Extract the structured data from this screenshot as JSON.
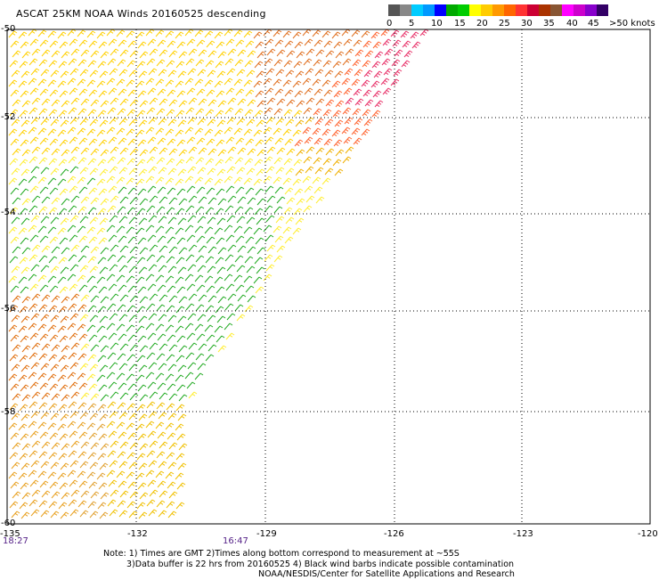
{
  "title": "ASCAT 25KM NOAA Winds 20160525 descending",
  "legend": {
    "colors": [
      "#555555",
      "#888888",
      "#00ccff",
      "#0099ff",
      "#0000ff",
      "#00aa00",
      "#00cc00",
      "#ffff00",
      "#ffcc00",
      "#ff9900",
      "#ff6600",
      "#ff3333",
      "#cc0033",
      "#aa3300",
      "#885533",
      "#ff00ff",
      "#cc00cc",
      "#8800cc",
      "#330066"
    ],
    "ticks": [
      "0",
      "5",
      "10",
      "15",
      "20",
      "25",
      "30",
      "35",
      "40",
      "45",
      ">50 knots"
    ]
  },
  "lat_labels": [
    "-50",
    "-52",
    "-54",
    "-56",
    "-58",
    "-60"
  ],
  "lon_labels": [
    "-135",
    "-132",
    "-129",
    "-126",
    "-123",
    "-120"
  ],
  "times": [
    "18:27",
    "16:47"
  ],
  "notes": [
    "Note: 1) Times are GMT 2)Times along bottom correspond to measurement at ~55S",
    "3)Data buffer is 22 hrs from 20160525 4) Black wind barbs indicate possible contamination",
    "NOAA/NESDIS/Center for Satellite Applications and Research"
  ]
}
